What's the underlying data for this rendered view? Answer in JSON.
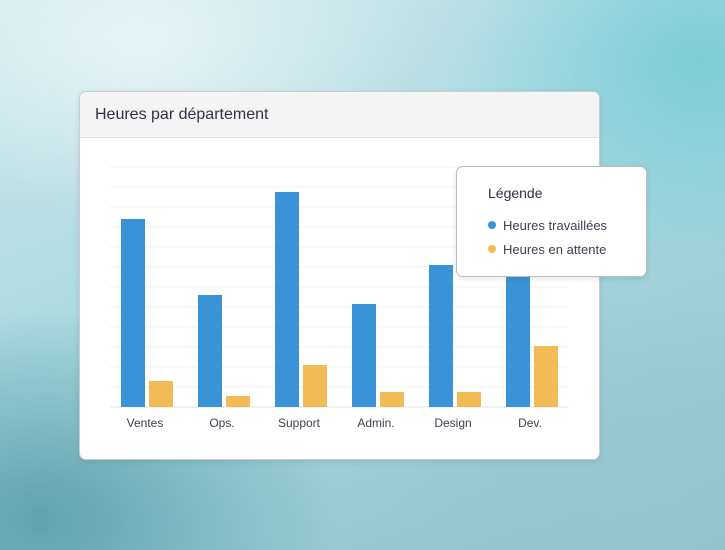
{
  "card": {
    "title": "Heures par département"
  },
  "legend": {
    "title": "Légende",
    "items": [
      {
        "label": "Heures travaillées",
        "color": "#3a93d6"
      },
      {
        "label": "Heures en attente",
        "color": "#f3bb56"
      }
    ]
  },
  "chart_data": {
    "type": "bar",
    "title": "Heures par département",
    "categories": [
      "Ventes",
      "Ops.",
      "Support",
      "Admin.",
      "Design",
      "Dev."
    ],
    "series": [
      {
        "name": "Heures travaillées",
        "color": "#3a93d6",
        "values": [
          94,
          56,
          107.5,
          51.5,
          71,
          67
        ]
      },
      {
        "name": "Heures en attente",
        "color": "#f3bb56",
        "values": [
          13,
          5.5,
          21,
          7.5,
          7.5,
          30.5
        ]
      }
    ],
    "ylim": [
      0,
      120
    ],
    "grid": true,
    "legend_position": "top-right"
  }
}
